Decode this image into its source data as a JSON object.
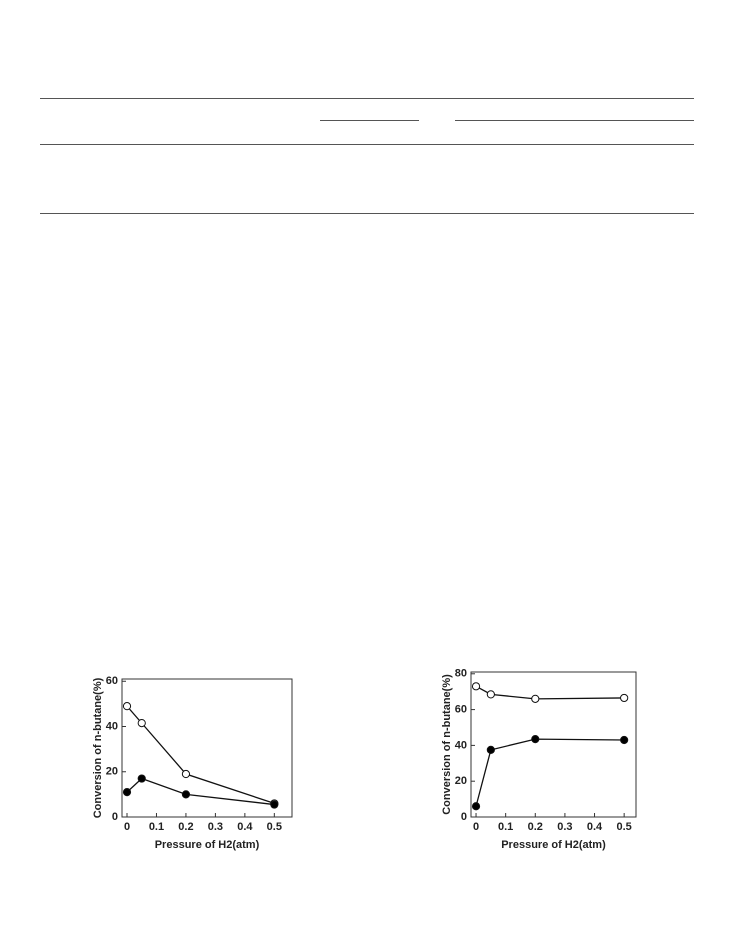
{
  "chart_data": [
    {
      "type": "line",
      "x": [
        0,
        0.05,
        0.2,
        0.5
      ],
      "xlabel": "Pressure of H2(atm)",
      "ylabel": "Conversion of n-butane(%)",
      "xlim": [
        -0.017,
        0.56
      ],
      "ylim": [
        0,
        61
      ],
      "xticks": [
        0,
        0.1,
        0.2,
        0.3,
        0.4,
        0.5
      ],
      "yticks": [
        0,
        20,
        40,
        60
      ],
      "series": [
        {
          "color": "#ffffff",
          "values": [
            49,
            41.5,
            19,
            6
          ]
        },
        {
          "color": "#000000",
          "values": [
            11,
            17,
            10,
            5.5
          ]
        }
      ]
    },
    {
      "type": "line",
      "x": [
        0,
        0.05,
        0.2,
        0.5
      ],
      "xlabel": "Pressure of H2(atm)",
      "ylabel": "Conversion of n-butane(%)",
      "xlim": [
        -0.017,
        0.54
      ],
      "ylim": [
        0,
        81
      ],
      "xticks": [
        0,
        0.1,
        0.2,
        0.3,
        0.4,
        0.5
      ],
      "yticks": [
        0,
        20,
        40,
        60,
        80
      ],
      "series": [
        {
          "color": "#ffffff",
          "values": [
            73,
            68.5,
            66,
            66.5
          ]
        },
        {
          "color": "#000000",
          "values": [
            6,
            37.5,
            43.5,
            43
          ]
        }
      ]
    }
  ]
}
